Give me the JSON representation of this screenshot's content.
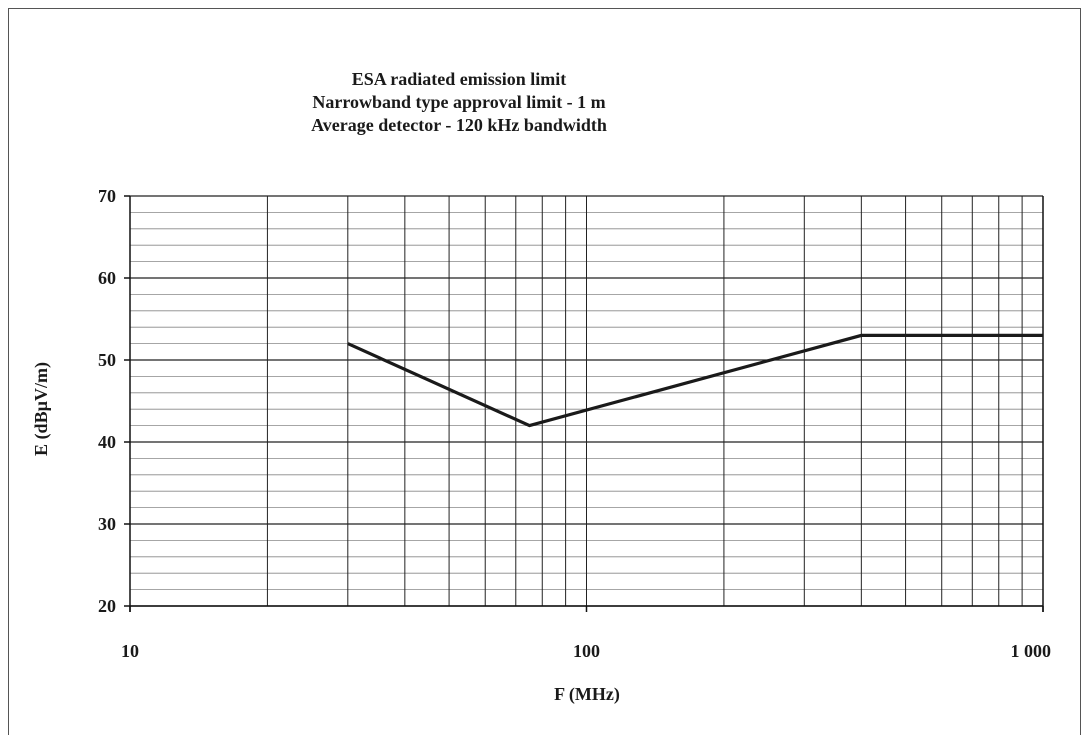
{
  "chart_data": {
    "type": "line",
    "title": [
      "ESA radiated emission limit",
      "Narrowband type approval limit - 1 m",
      "Average detector - 120 kHz bandwidth"
    ],
    "xlabel": "F (MHz)",
    "ylabel": "E (dBµV/m)",
    "x_scale": "log",
    "xlim": [
      10,
      1000
    ],
    "ylim": [
      20,
      70
    ],
    "x_ticks": [
      {
        "value": 10,
        "label": "10"
      },
      {
        "value": 100,
        "label": "100"
      },
      {
        "value": 1000,
        "label": "1 000"
      }
    ],
    "y_ticks": [
      {
        "value": 20,
        "label": "20"
      },
      {
        "value": 30,
        "label": "30"
      },
      {
        "value": 40,
        "label": "40"
      },
      {
        "value": 50,
        "label": "50"
      },
      {
        "value": 60,
        "label": "60"
      },
      {
        "value": 70,
        "label": "70"
      }
    ],
    "y_minor_step": 2,
    "grid": true,
    "series": [
      {
        "x": [
          30,
          75,
          400,
          1000
        ],
        "y": [
          52,
          42,
          53,
          53
        ]
      }
    ],
    "colors": {
      "line": "#1a1a1a",
      "grid_major": "#222222",
      "grid_minor": "#888888"
    }
  }
}
